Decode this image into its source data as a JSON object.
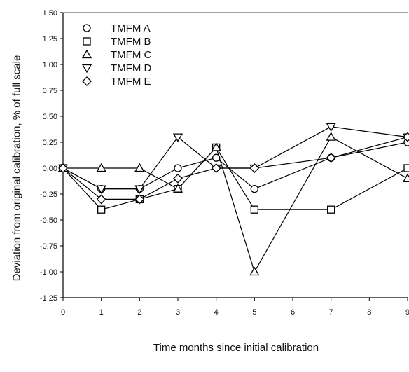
{
  "chart_data": {
    "type": "line",
    "xlabel": "Time  months since initial calibration",
    "ylabel": "Deviation from original calibration, % of full scale",
    "x_ticks": [
      "0",
      "1",
      "2",
      "3",
      "4",
      "5",
      "6",
      "7",
      "8",
      "9"
    ],
    "y_ticks": [
      "1 50",
      "1 25",
      "1 00",
      "0 75",
      "0.50",
      "0.25",
      "0.00",
      "-0.25",
      "-0.50",
      "-0.75",
      "-1 00",
      "-1 25"
    ],
    "xlim": [
      0,
      9
    ],
    "ylim": [
      -1.25,
      1.5
    ],
    "legend_position": "top-left",
    "marker_fill": "#ffffff",
    "line_color": "#000000",
    "series": [
      {
        "name": "TMFM A",
        "marker": "circle",
        "x": [
          0,
          1,
          2,
          3,
          4,
          5,
          7,
          9
        ],
        "y": [
          0.0,
          -0.2,
          -0.2,
          0.0,
          0.1,
          -0.2,
          0.1,
          0.25
        ]
      },
      {
        "name": "TMFM B",
        "marker": "square",
        "x": [
          0,
          1,
          2,
          3,
          4,
          5,
          7,
          9
        ],
        "y": [
          0.0,
          -0.4,
          -0.3,
          -0.2,
          0.2,
          -0.4,
          -0.4,
          0.0
        ]
      },
      {
        "name": "TMFM C",
        "marker": "triangle-up",
        "x": [
          0,
          1,
          2,
          3,
          4,
          5,
          7,
          9
        ],
        "y": [
          0.0,
          0.0,
          0.0,
          -0.2,
          0.2,
          -1.0,
          0.3,
          -0.1
        ]
      },
      {
        "name": "TMFM D",
        "marker": "triangle-down",
        "x": [
          0,
          1,
          2,
          3,
          4,
          5,
          7,
          9
        ],
        "y": [
          0.0,
          -0.2,
          -0.2,
          0.3,
          0.0,
          0.0,
          0.4,
          0.3
        ]
      },
      {
        "name": "TMFM E",
        "marker": "diamond",
        "x": [
          0,
          1,
          2,
          3,
          4,
          5,
          7,
          9
        ],
        "y": [
          0.0,
          -0.3,
          -0.3,
          -0.1,
          0.0,
          0.0,
          0.1,
          0.3
        ]
      }
    ]
  }
}
